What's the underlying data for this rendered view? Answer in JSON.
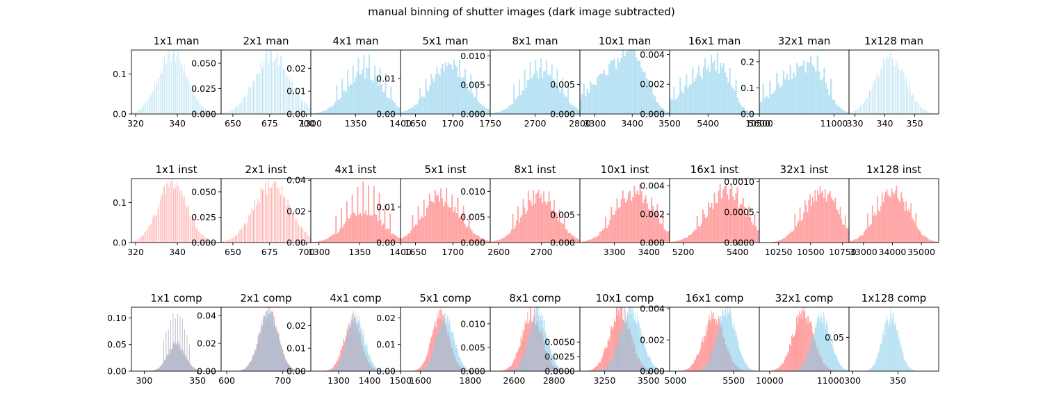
{
  "suptitle": "manual binning of shutter images (dark image subtracted)",
  "colors": {
    "man": "#87ceeb",
    "inst": "#ff6666",
    "axis": "#000000"
  },
  "chart_data": [
    {
      "type": "bar",
      "row": 0,
      "col": 0,
      "title": "1x1 man",
      "series": [
        {
          "name": "",
          "color": "#87ceeb",
          "center": 338,
          "sd": 7,
          "peak": 0.15
        }
      ],
      "xlim": [
        318,
        361
      ],
      "xticks": [
        320,
        340
      ],
      "ylim": [
        0,
        0.16
      ],
      "yticks": [
        "0.0",
        "0.1"
      ],
      "ytick_values": [
        0,
        0.1
      ],
      "nbins": 90,
      "comb": true
    },
    {
      "type": "bar",
      "row": 0,
      "col": 1,
      "title": "2x1 man",
      "series": [
        {
          "name": "",
          "color": "#87ceeb",
          "center": 677,
          "sd": 12,
          "peak": 0.058
        }
      ],
      "xlim": [
        642,
        703
      ],
      "xticks": [
        650,
        675,
        700
      ],
      "ylim": [
        0,
        0.063
      ],
      "yticks": [
        "0.000",
        "0.025",
        "0.050"
      ],
      "ytick_values": [
        0,
        0.025,
        0.05
      ],
      "nbins": 80,
      "comb": true
    },
    {
      "type": "bar",
      "row": 0,
      "col": 2,
      "title": "4x1 man",
      "series": [
        {
          "name": "",
          "color": "#87ceeb",
          "center": 1360,
          "sd": 20,
          "peak": 0.018,
          "spike": 0.027
        }
      ],
      "xlim": [
        1300,
        1400
      ],
      "xticks": [
        1300,
        1350,
        1400
      ],
      "ylim": [
        0,
        0.028
      ],
      "yticks": [
        "0.00",
        "0.01",
        "0.02"
      ],
      "ytick_values": [
        0,
        0.01,
        0.02
      ],
      "nbins": 90,
      "comb": false
    },
    {
      "type": "bar",
      "row": 0,
      "col": 3,
      "title": "5x1 man",
      "series": [
        {
          "name": "",
          "color": "#87ceeb",
          "center": 1695,
          "sd": 25,
          "peak": 0.013,
          "spike": 0.017
        }
      ],
      "xlim": [
        1630,
        1750
      ],
      "xticks": [
        1650,
        1700,
        1750
      ],
      "xtick_labels": [
        "1650",
        "1700",
        "1750"
      ],
      "ylim": [
        0,
        0.018
      ],
      "yticks": [
        "0.00",
        "0.01"
      ],
      "ytick_values": [
        0,
        0.01
      ],
      "nbins": 90,
      "comb": false
    },
    {
      "type": "bar",
      "row": 0,
      "col": 4,
      "title": "8x1 man",
      "series": [
        {
          "name": "",
          "color": "#87ceeb",
          "center": 2715,
          "sd": 40,
          "peak": 0.007,
          "spike": 0.0105
        }
      ],
      "xlim": [
        2600,
        2800
      ],
      "xticks": [
        2700,
        2800
      ],
      "ylim": [
        0,
        0.011
      ],
      "yticks": [
        "0.000",
        "0.005",
        "0.010"
      ],
      "ytick_values": [
        0,
        0.005,
        0.01
      ],
      "nbins": 90,
      "comb": false
    },
    {
      "type": "bar",
      "row": 0,
      "col": 5,
      "title": "10x1 man",
      "series": [
        {
          "name": "",
          "color": "#87ceeb",
          "center": 3400,
          "sd": 60,
          "peak": 0.01,
          "spike": 0.0102,
          "skew": true
        }
      ],
      "xlim": [
        3260,
        3500
      ],
      "xticks": [
        3300,
        3400,
        3500
      ],
      "ylim": [
        0,
        0.0108
      ],
      "yticks": [
        "0.000",
        "0.005"
      ],
      "ytick_values": [
        0,
        0.005
      ],
      "nbins": 90,
      "comb": false
    },
    {
      "type": "bar",
      "row": 0,
      "col": 6,
      "title": "16x1 man",
      "series": [
        {
          "name": "",
          "color": "#87ceeb",
          "center": 5440,
          "sd": 80,
          "peak": 0.0032,
          "spike": 0.0042,
          "skew": true
        }
      ],
      "xlim": [
        5250,
        5600
      ],
      "xticks": [
        5400,
        5600
      ],
      "ylim": [
        0,
        0.0043
      ],
      "yticks": [
        "0.000",
        "0.002",
        "0.004"
      ],
      "ytick_values": [
        0,
        0.002,
        0.004
      ],
      "nbins": 90,
      "comb": false
    },
    {
      "type": "bar",
      "row": 0,
      "col": 7,
      "title": "32x1 man",
      "series": [
        {
          "name": "",
          "color": "#87ceeb",
          "center": 10850,
          "sd": 150,
          "peak": 0.18,
          "spike": 0.24,
          "skew": true
        }
      ],
      "xlim": [
        10500,
        11100
      ],
      "xticks": [
        10500,
        11000
      ],
      "xtick_labels": [
        "10500",
        "11000"
      ],
      "ylim": [
        0,
        0.245
      ],
      "yticks": [
        "0.0",
        "0.1",
        "0.2"
      ],
      "ytick_values": [
        0,
        0.1,
        0.2
      ],
      "nbins": 90,
      "comb": false
    },
    {
      "type": "bar",
      "row": 0,
      "col": 8,
      "title": "1x128 man",
      "series": [
        {
          "name": "",
          "color": "#87ceeb",
          "center": 342,
          "sd": 5,
          "peak": 0.22
        }
      ],
      "xlim": [
        328,
        358
      ],
      "xticks": [
        330,
        340,
        350
      ],
      "ylim": [
        0,
        0.245
      ],
      "yticks": [],
      "ytick_values": [],
      "nbins": 80,
      "comb": true
    },
    {
      "type": "bar",
      "row": 1,
      "col": 0,
      "title": "1x1 inst",
      "series": [
        {
          "name": "",
          "color": "#ff6666",
          "center": 338,
          "sd": 7,
          "peak": 0.15
        }
      ],
      "xlim": [
        318,
        361
      ],
      "xticks": [
        320,
        340
      ],
      "ylim": [
        0,
        0.16
      ],
      "yticks": [
        "0.0",
        "0.1"
      ],
      "ytick_values": [
        0,
        0.1
      ],
      "nbins": 90,
      "comb": true
    },
    {
      "type": "bar",
      "row": 1,
      "col": 1,
      "title": "2x1 inst",
      "series": [
        {
          "name": "",
          "color": "#ff6666",
          "center": 677,
          "sd": 12,
          "peak": 0.058
        }
      ],
      "xlim": [
        642,
        703
      ],
      "xticks": [
        650,
        675,
        700
      ],
      "ylim": [
        0,
        0.063
      ],
      "yticks": [
        "0.000",
        "0.025",
        "0.050"
      ],
      "ytick_values": [
        0,
        0.025,
        0.05
      ],
      "nbins": 80,
      "comb": true
    },
    {
      "type": "bar",
      "row": 1,
      "col": 2,
      "title": "4x1 inst",
      "series": [
        {
          "name": "",
          "color": "#ff6666",
          "center": 1355,
          "sd": 22,
          "peak": 0.02,
          "spike": 0.04
        }
      ],
      "xlim": [
        1290,
        1400
      ],
      "xticks": [
        1300,
        1350,
        1400
      ],
      "ylim": [
        0,
        0.041
      ],
      "yticks": [
        "0.00",
        "0.02",
        "0.04"
      ],
      "ytick_values": [
        0,
        0.02,
        0.04
      ],
      "nbins": 90,
      "comb": false
    },
    {
      "type": "bar",
      "row": 1,
      "col": 3,
      "title": "5x1 inst",
      "series": [
        {
          "name": "",
          "color": "#ff6666",
          "center": 1685,
          "sd": 25,
          "peak": 0.012,
          "spike": 0.017
        }
      ],
      "xlim": [
        1630,
        1750
      ],
      "xticks": [
        1650,
        1700
      ],
      "ylim": [
        0,
        0.018
      ],
      "yticks": [
        "0.00",
        "0.01"
      ],
      "ytick_values": [
        0,
        0.01
      ],
      "nbins": 90,
      "comb": false
    },
    {
      "type": "bar",
      "row": 1,
      "col": 4,
      "title": "8x1 inst",
      "series": [
        {
          "name": "",
          "color": "#ff6666",
          "center": 2695,
          "sd": 40,
          "peak": 0.009,
          "spike": 0.0115
        }
      ],
      "xlim": [
        2580,
        2790
      ],
      "xticks": [
        2600,
        2700
      ],
      "ylim": [
        0,
        0.0125
      ],
      "yticks": [
        "0.000",
        "0.005",
        "0.010"
      ],
      "ytick_values": [
        0,
        0.005,
        0.01
      ],
      "nbins": 90,
      "comb": false
    },
    {
      "type": "bar",
      "row": 1,
      "col": 5,
      "title": "10x1 inst",
      "series": [
        {
          "name": "",
          "color": "#ff6666",
          "center": 3360,
          "sd": 55,
          "peak": 0.009,
          "spike": 0.0108
        }
      ],
      "xlim": [
        3200,
        3460
      ],
      "xticks": [
        3300,
        3400
      ],
      "ylim": [
        0,
        0.0115
      ],
      "yticks": [
        "0.000",
        "0.005"
      ],
      "ytick_values": [
        0,
        0.005
      ],
      "nbins": 90,
      "comb": false
    },
    {
      "type": "bar",
      "row": 1,
      "col": 6,
      "title": "16x1 inst",
      "series": [
        {
          "name": "",
          "color": "#ff6666",
          "center": 5360,
          "sd": 70,
          "peak": 0.0035,
          "spike": 0.0043
        }
      ],
      "xlim": [
        5150,
        5480
      ],
      "xticks": [
        5200,
        5400
      ],
      "ylim": [
        0,
        0.0045
      ],
      "yticks": [
        "0.000",
        "0.002",
        "0.004"
      ],
      "ytick_values": [
        0,
        0.002,
        0.004
      ],
      "nbins": 90,
      "comb": false
    },
    {
      "type": "bar",
      "row": 1,
      "col": 7,
      "title": "32x1 inst",
      "series": [
        {
          "name": "",
          "color": "#ff6666",
          "center": 10580,
          "sd": 130,
          "peak": 0.0008,
          "spike": 0.001
        }
      ],
      "xlim": [
        10100,
        10800
      ],
      "xticks": [
        10250,
        10500,
        10750
      ],
      "ylim": [
        0,
        0.00105
      ],
      "yticks": [
        "0.0000",
        "0.0005",
        "0.0010"
      ],
      "ytick_values": [
        0,
        0.0005,
        0.001
      ],
      "nbins": 90,
      "comb": false
    },
    {
      "type": "bar",
      "row": 1,
      "col": 8,
      "title": "1x128 inst",
      "series": [
        {
          "name": "",
          "color": "#ff6666",
          "center": 34000,
          "sd": 550,
          "peak": 0.8,
          "spike": 1.0
        }
      ],
      "xlim": [
        32500,
        35600
      ],
      "xticks": [
        33000,
        34000,
        35000
      ],
      "ylim": [
        0,
        1.05
      ],
      "yticks": [],
      "ytick_values": [],
      "nbins": 90,
      "comb": false
    },
    {
      "type": "bar",
      "row": 2,
      "col": 0,
      "title": "1x1 comp",
      "series": [
        {
          "name": "",
          "color": "#ff6666",
          "center": 330,
          "sd": 8,
          "peak": 0.05,
          "spike": 0.115
        },
        {
          "name": "",
          "color": "#87ceeb",
          "center": 330,
          "sd": 8,
          "peak": 0.05,
          "spike": 0.115
        }
      ],
      "xlim": [
        288,
        372
      ],
      "xticks": [
        300,
        350
      ],
      "ylim": [
        0,
        0.12
      ],
      "yticks": [
        "0.00",
        "0.05",
        "0.10"
      ],
      "ytick_values": [
        0,
        0.05,
        0.1
      ],
      "nbins": 100,
      "comb": false
    },
    {
      "type": "bar",
      "row": 2,
      "col": 1,
      "title": "2x1 comp",
      "series": [
        {
          "name": "",
          "color": "#ff6666",
          "center": 675,
          "sd": 17,
          "peak": 0.042
        },
        {
          "name": "",
          "color": "#87ceeb",
          "center": 675,
          "sd": 17,
          "peak": 0.042
        }
      ],
      "xlim": [
        590,
        750
      ],
      "xticks": [
        600,
        700
      ],
      "ylim": [
        0,
        0.046
      ],
      "yticks": [
        "0.00",
        "0.02",
        "0.04"
      ],
      "ytick_values": [
        0,
        0.02,
        0.04
      ],
      "nbins": 100,
      "comb": false
    },
    {
      "type": "bar",
      "row": 2,
      "col": 2,
      "title": "4x1 comp",
      "series": [
        {
          "name": "",
          "color": "#ff6666",
          "center": 1345,
          "sd": 28,
          "peak": 0.022
        },
        {
          "name": "",
          "color": "#87ceeb",
          "center": 1355,
          "sd": 28,
          "peak": 0.024
        }
      ],
      "xlim": [
        1210,
        1500
      ],
      "xticks": [
        1300,
        1400,
        1500
      ],
      "ylim": [
        0,
        0.028
      ],
      "yticks": [
        "0.00",
        "0.01",
        "0.02"
      ],
      "ytick_values": [
        0,
        0.01,
        0.02
      ],
      "nbins": 100,
      "comb": false
    },
    {
      "type": "bar",
      "row": 2,
      "col": 3,
      "title": "5x1 comp",
      "series": [
        {
          "name": "",
          "color": "#ff6666",
          "center": 1680,
          "sd": 35,
          "peak": 0.021
        },
        {
          "name": "",
          "color": "#87ceeb",
          "center": 1700,
          "sd": 35,
          "peak": 0.02
        }
      ],
      "xlim": [
        1520,
        1880
      ],
      "xticks": [
        1600,
        1800
      ],
      "ylim": [
        0,
        0.024
      ],
      "yticks": [
        "0.00",
        "0.01",
        "0.02"
      ],
      "ytick_values": [
        0,
        0.01,
        0.02
      ],
      "nbins": 100,
      "comb": false
    },
    {
      "type": "bar",
      "row": 2,
      "col": 4,
      "title": "8x1 comp",
      "series": [
        {
          "name": "",
          "color": "#ff6666",
          "center": 2690,
          "sd": 50,
          "peak": 0.012
        },
        {
          "name": "",
          "color": "#87ceeb",
          "center": 2720,
          "sd": 45,
          "peak": 0.0125
        }
      ],
      "xlim": [
        2480,
        2930
      ],
      "xticks": [
        2600,
        2800
      ],
      "ylim": [
        0,
        0.0135
      ],
      "yticks": [
        "0.000",
        "0.005",
        "0.010"
      ],
      "ytick_values": [
        0,
        0.005,
        0.01
      ],
      "nbins": 100,
      "comb": false
    },
    {
      "type": "bar",
      "row": 2,
      "col": 5,
      "title": "10x1 comp",
      "series": [
        {
          "name": "",
          "color": "#ff6666",
          "center": 3340,
          "sd": 60,
          "peak": 0.0105
        },
        {
          "name": "",
          "color": "#87ceeb",
          "center": 3400,
          "sd": 60,
          "peak": 0.0108
        }
      ],
      "xlim": [
        3110,
        3620
      ],
      "xticks": [
        3250,
        3500
      ],
      "ylim": [
        0,
        0.011
      ],
      "yticks": [
        "0.0000",
        "0.0025",
        "0.0050"
      ],
      "ytick_values": [
        0,
        0.0025,
        0.005
      ],
      "nbins": 100,
      "comb": false
    },
    {
      "type": "bar",
      "row": 2,
      "col": 6,
      "title": "16x1 comp",
      "series": [
        {
          "name": "",
          "color": "#ff6666",
          "center": 5330,
          "sd": 90,
          "peak": 0.0035
        },
        {
          "name": "",
          "color": "#87ceeb",
          "center": 5440,
          "sd": 80,
          "peak": 0.004
        }
      ],
      "xlim": [
        4950,
        5720
      ],
      "xticks": [
        5000,
        5500
      ],
      "ylim": [
        0,
        0.0041
      ],
      "yticks": [
        "0.000",
        "0.002",
        "0.004"
      ],
      "ytick_values": [
        0,
        0.002,
        0.004
      ],
      "nbins": 100,
      "comb": false
    },
    {
      "type": "bar",
      "row": 2,
      "col": 7,
      "title": "32x1 comp",
      "series": [
        {
          "name": "",
          "color": "#ff6666",
          "center": 10550,
          "sd": 170,
          "peak": 0.0012
        },
        {
          "name": "",
          "color": "#87ceeb",
          "center": 10850,
          "sd": 150,
          "peak": 0.0011
        }
      ],
      "xlim": [
        9830,
        11300
      ],
      "xticks": [
        10000,
        11000
      ],
      "ylim": [
        0,
        0.0013
      ],
      "yticks": [],
      "ytick_values": [],
      "nbins": 100,
      "comb": false
    },
    {
      "type": "bar",
      "row": 2,
      "col": 8,
      "title": "1x128 comp",
      "series": [
        {
          "name": "",
          "color": "#87ceeb",
          "center": 342,
          "sd": 9,
          "peak": 0.082
        }
      ],
      "xlim": [
        296,
        395
      ],
      "xticks": [
        300,
        350
      ],
      "ylim": [
        0,
        0.095
      ],
      "yticks": [
        "0.05"
      ],
      "ytick_values": [
        0.05
      ],
      "nbins": 100,
      "comb": false
    }
  ]
}
